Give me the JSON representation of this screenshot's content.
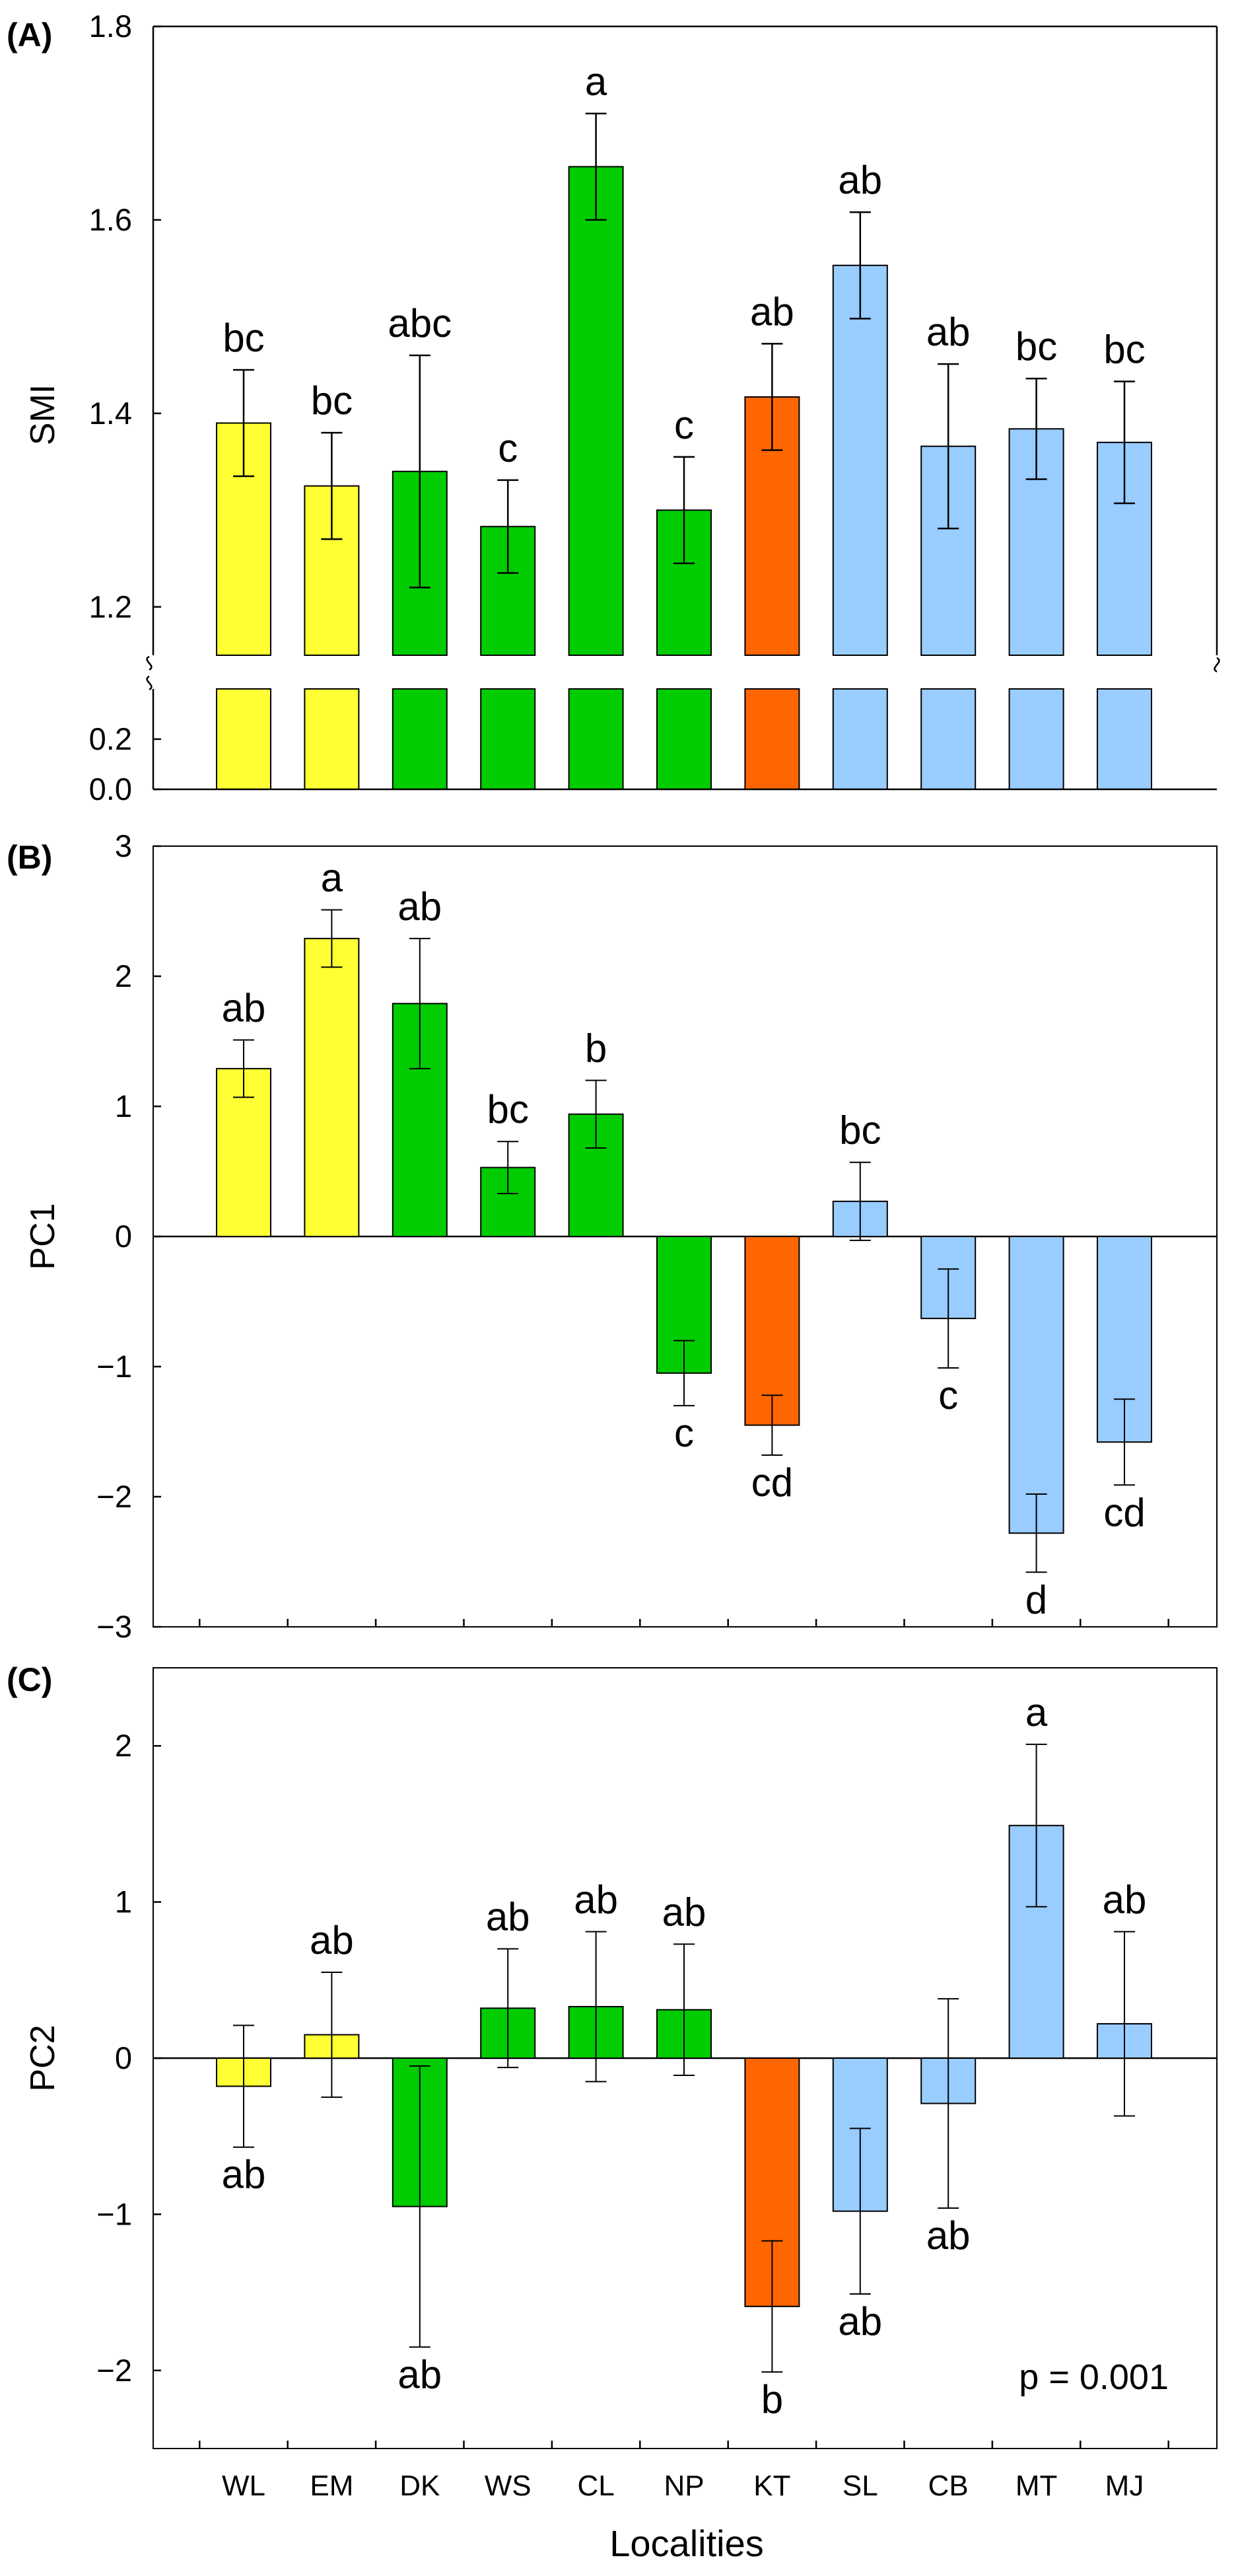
{
  "colors": {
    "yellow": "#ffff33",
    "green": "#00cc00",
    "orange": "#ff6600",
    "blue": "#99ccff"
  },
  "chart_data": [
    {
      "panel": "(A)",
      "type": "bar",
      "ylabel": "SMI",
      "xlabel": "",
      "axis_break": true,
      "ylim_lower": [
        0,
        0.4
      ],
      "ylim_upper": [
        1.15,
        1.8
      ],
      "yticks_lower": [
        "0.0",
        "0.2"
      ],
      "yticks_upper": [
        "1.2",
        "1.4",
        "1.6",
        "1.8"
      ],
      "categories": [
        "WL",
        "EM",
        "DK",
        "WS",
        "CL",
        "NP",
        "KT",
        "SL",
        "CB",
        "MT",
        "MJ"
      ],
      "bar_colors": [
        "yellow",
        "yellow",
        "green",
        "green",
        "green",
        "green",
        "orange",
        "blue",
        "blue",
        "blue",
        "blue"
      ],
      "values": [
        1.39,
        1.325,
        1.34,
        1.283,
        1.655,
        1.3,
        1.417,
        1.553,
        1.366,
        1.384,
        1.37
      ],
      "errors": [
        0.055,
        0.055,
        0.12,
        0.048,
        0.055,
        0.055,
        0.055,
        0.055,
        0.085,
        0.052,
        0.063
      ],
      "labels": [
        "bc",
        "bc",
        "abc",
        "c",
        "a",
        "c",
        "ab",
        "ab",
        "ab",
        "bc",
        "bc"
      ]
    },
    {
      "panel": "(B)",
      "type": "bar",
      "ylabel": "PC1",
      "xlabel": "",
      "ylim": [
        -3,
        3
      ],
      "yticks": [
        "−3",
        "−2",
        "−1",
        "0",
        "1",
        "2",
        "3"
      ],
      "categories": [
        "WL",
        "EM",
        "DK",
        "WS",
        "CL",
        "NP",
        "KT",
        "SL",
        "CB",
        "MT",
        "MJ"
      ],
      "bar_colors": [
        "yellow",
        "yellow",
        "green",
        "green",
        "green",
        "green",
        "orange",
        "blue",
        "blue",
        "blue",
        "blue"
      ],
      "values": [
        1.29,
        2.29,
        1.79,
        0.53,
        0.94,
        -1.05,
        -1.45,
        0.27,
        -0.63,
        -2.28,
        -1.58
      ],
      "errors": [
        0.22,
        0.22,
        0.5,
        0.2,
        0.26,
        0.25,
        0.23,
        0.3,
        0.38,
        0.3,
        0.33
      ],
      "labels": [
        "ab",
        "a",
        "ab",
        "bc",
        "b",
        "c",
        "cd",
        "bc",
        "c",
        "d",
        "cd"
      ]
    },
    {
      "panel": "(C)",
      "type": "bar",
      "ylabel": "PC2",
      "xlabel": "Localities",
      "ylim": [
        -2.5,
        2.5
      ],
      "yticks": [
        "−2",
        "−1",
        "0",
        "1",
        "2"
      ],
      "categories": [
        "WL",
        "EM",
        "DK",
        "WS",
        "CL",
        "NP",
        "KT",
        "SL",
        "CB",
        "MT",
        "MJ"
      ],
      "bar_colors": [
        "yellow",
        "yellow",
        "green",
        "green",
        "green",
        "green",
        "orange",
        "blue",
        "blue",
        "blue",
        "blue"
      ],
      "values": [
        -0.18,
        0.15,
        -0.95,
        0.32,
        0.33,
        0.31,
        -1.59,
        -0.98,
        -0.29,
        1.49,
        0.22
      ],
      "errors": [
        0.39,
        0.4,
        0.9,
        0.38,
        0.48,
        0.42,
        0.42,
        0.53,
        0.67,
        0.52,
        0.59
      ],
      "labels": [
        "ab",
        "ab",
        "ab",
        "ab",
        "ab",
        "ab",
        "b",
        "ab",
        "ab",
        "a",
        "ab"
      ],
      "annotation": "p = 0.001"
    }
  ]
}
